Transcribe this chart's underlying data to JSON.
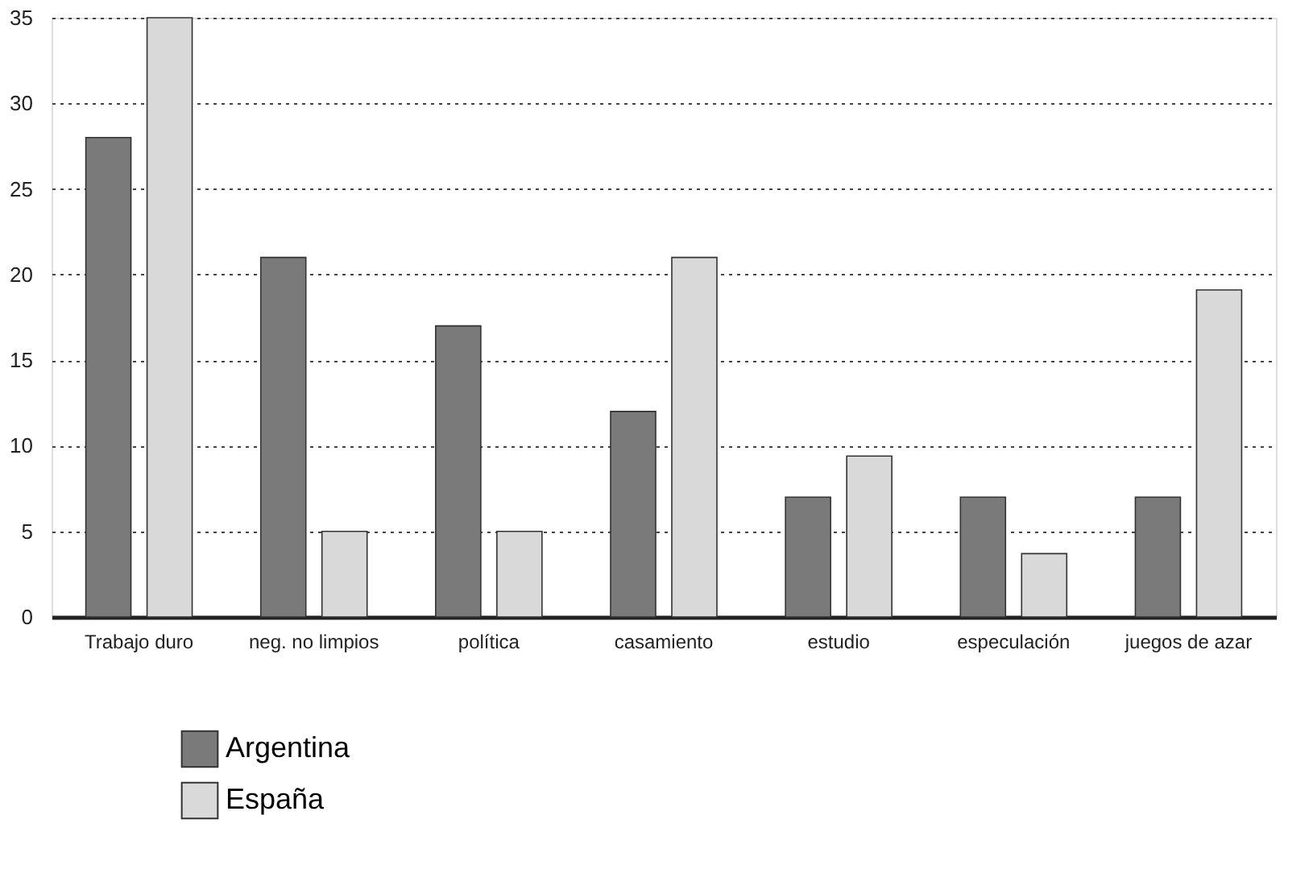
{
  "chart_data": {
    "type": "bar",
    "categories": [
      "Trabajo duro",
      "neg. no limpios",
      "política",
      "casamiento",
      "estudio",
      "especulación",
      "juegos de azar"
    ],
    "series": [
      {
        "name": "Argentina",
        "color": "#7a7a7a",
        "values": [
          28,
          21,
          17,
          12,
          7,
          7,
          7
        ]
      },
      {
        "name": "España",
        "color": "#d9d9d9",
        "values": [
          35,
          5,
          5,
          21,
          9.4,
          3.7,
          19.1
        ]
      }
    ],
    "ylim": [
      0,
      35
    ],
    "yticks": [
      0,
      5,
      10,
      15,
      20,
      25,
      30,
      35
    ],
    "grid": "y",
    "legend": "bottom left"
  }
}
